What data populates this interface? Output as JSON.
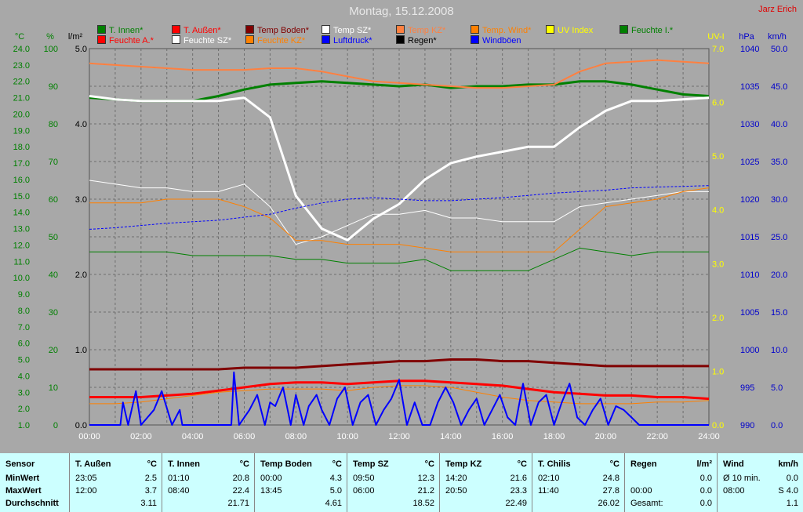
{
  "title": "Montag, 15.12.2008",
  "author": "Jarz Erich",
  "axes": {
    "left1_unit": "°C",
    "left2_unit": "%",
    "left3_unit": "l/m²",
    "right1_unit": "UV-I",
    "right2_unit": "hPa",
    "right3_unit": "km/h",
    "temp_ticks": [
      "24.0",
      "23.0",
      "22.0",
      "21.0",
      "20.0",
      "19.0",
      "18.0",
      "17.0",
      "16.0",
      "15.0",
      "14.0",
      "13.0",
      "12.0",
      "11.0",
      "10.0",
      "9.0",
      "8.0",
      "7.0",
      "6.0",
      "5.0",
      "4.0",
      "3.0",
      "2.0",
      "1.0"
    ],
    "hum_ticks": [
      "100",
      "90",
      "80",
      "70",
      "60",
      "50",
      "40",
      "30",
      "20",
      "10",
      "0"
    ],
    "rain_ticks": [
      "5.0",
      "4.0",
      "3.0",
      "2.0",
      "1.0",
      "0.0"
    ],
    "uv_ticks": [
      "7.0",
      "6.0",
      "5.0",
      "4.0",
      "3.0",
      "2.0",
      "1.0",
      "0.0"
    ],
    "hpa_ticks": [
      "1040",
      "1035",
      "1030",
      "1025",
      "1020",
      "1015",
      "1010",
      "1005",
      "1000",
      "995",
      "990"
    ],
    "kmh_ticks": [
      "50.0",
      "45.0",
      "40.0",
      "35.0",
      "30.0",
      "25.0",
      "20.0",
      "15.0",
      "10.0",
      "5.0",
      "0.0"
    ],
    "time_ticks": [
      "00:00",
      "02:00",
      "04:00",
      "06:00",
      "08:00",
      "10:00",
      "12:00",
      "14:00",
      "16:00",
      "18:00",
      "20:00",
      "22:00",
      "24:00"
    ]
  },
  "legend": [
    {
      "label": "T. Innen*",
      "color": "#008000"
    },
    {
      "label": "T. Außen*",
      "color": "#ff0000"
    },
    {
      "label": "Temp Boden*",
      "color": "#800000"
    },
    {
      "label": "Temp SZ*",
      "color": "#ffffff"
    },
    {
      "label": "Temp KZ*",
      "color": "#ff8040"
    },
    {
      "label": "Temp. Wind*",
      "color": "#ff8000"
    },
    {
      "label": "UV Index",
      "color": "#ffff00"
    },
    {
      "label": "Feuchte I.*",
      "color": "#008000"
    },
    {
      "label": "Feuchte A.*",
      "color": "#ff0000"
    },
    {
      "label": "Feuchte SZ*",
      "color": "#ffffff"
    },
    {
      "label": "Feuchte KZ*",
      "color": "#ff8000"
    },
    {
      "label": "Luftdruck*",
      "color": "#0000ff"
    },
    {
      "label": "Regen*",
      "color": "#000000"
    },
    {
      "label": "Windböen",
      "color": "#0000ff"
    }
  ],
  "chart_data": {
    "type": "line",
    "title": "Montag, 15.12.2008",
    "x_unit": "hours",
    "xlim": [
      0,
      24
    ],
    "temp_ylim": [
      1,
      24
    ],
    "hum_ylim": [
      0,
      100
    ],
    "hpa_ylim": [
      990,
      1040
    ],
    "kmh_ylim": [
      0,
      50
    ],
    "series": [
      {
        "name": "T. Innen*",
        "axis": "temp",
        "color": "#008000",
        "width": 3,
        "x": [
          0,
          1,
          2,
          3,
          4,
          5,
          6,
          7,
          8,
          9,
          10,
          11,
          12,
          13,
          14,
          15,
          16,
          17,
          18,
          19,
          20,
          21,
          22,
          23,
          24
        ],
        "y": [
          21.0,
          20.9,
          20.8,
          20.8,
          20.8,
          21.1,
          21.5,
          21.8,
          21.9,
          22.0,
          21.9,
          21.8,
          21.7,
          21.8,
          21.6,
          21.7,
          21.7,
          21.8,
          21.8,
          22.0,
          22.0,
          21.8,
          21.5,
          21.2,
          21.1
        ]
      },
      {
        "name": "T. Außen*",
        "axis": "temp",
        "color": "#ff0000",
        "width": 3,
        "x": [
          0,
          1,
          2,
          3,
          4,
          5,
          6,
          7,
          8,
          9,
          10,
          11,
          12,
          13,
          14,
          15,
          16,
          17,
          18,
          19,
          20,
          21,
          22,
          23,
          24
        ],
        "y": [
          2.7,
          2.7,
          2.7,
          2.8,
          2.9,
          3.1,
          3.3,
          3.5,
          3.6,
          3.6,
          3.5,
          3.6,
          3.7,
          3.7,
          3.6,
          3.5,
          3.4,
          3.2,
          3.0,
          2.9,
          2.8,
          2.8,
          2.7,
          2.7,
          2.6
        ]
      },
      {
        "name": "Temp Boden*",
        "axis": "temp",
        "color": "#800000",
        "width": 3,
        "x": [
          0,
          1,
          2,
          3,
          4,
          5,
          6,
          7,
          8,
          9,
          10,
          11,
          12,
          13,
          14,
          15,
          16,
          17,
          18,
          19,
          20,
          21,
          22,
          23,
          24
        ],
        "y": [
          4.4,
          4.4,
          4.4,
          4.4,
          4.4,
          4.4,
          4.5,
          4.5,
          4.5,
          4.6,
          4.7,
          4.8,
          4.9,
          4.9,
          5.0,
          5.0,
          4.9,
          4.9,
          4.8,
          4.7,
          4.6,
          4.6,
          4.6,
          4.6,
          4.6
        ]
      },
      {
        "name": "Temp SZ*",
        "axis": "temp",
        "color": "#ffffff",
        "width": 3,
        "x": [
          0,
          1,
          2,
          3,
          4,
          5,
          6,
          7,
          8,
          9,
          10,
          11,
          12,
          13,
          14,
          15,
          16,
          17,
          18,
          19,
          20,
          21,
          22,
          23,
          24
        ],
        "y": [
          21.1,
          20.9,
          20.8,
          20.8,
          20.8,
          20.8,
          21.0,
          19.8,
          15.0,
          13.0,
          12.3,
          13.6,
          14.5,
          16.0,
          17.0,
          17.4,
          17.7,
          18.0,
          18.0,
          19.2,
          20.2,
          20.8,
          20.8,
          20.9,
          21.0
        ]
      },
      {
        "name": "Temp KZ*",
        "axis": "temp",
        "color": "#ff8040",
        "width": 2,
        "x": [
          0,
          1,
          2,
          3,
          4,
          5,
          6,
          7,
          8,
          9,
          10,
          11,
          12,
          13,
          14,
          15,
          16,
          17,
          18,
          19,
          20,
          21,
          22,
          23,
          24
        ],
        "y": [
          23.1,
          23.0,
          22.9,
          22.8,
          22.7,
          22.7,
          22.7,
          22.8,
          22.8,
          22.6,
          22.3,
          22.0,
          21.9,
          21.8,
          21.7,
          21.6,
          21.6,
          21.7,
          21.8,
          22.6,
          23.1,
          23.2,
          23.3,
          23.2,
          23.1
        ]
      },
      {
        "name": "Temp. Wind*",
        "axis": "temp",
        "color": "#ff8000",
        "width": 1,
        "x": [
          0,
          1,
          2,
          3,
          4,
          5,
          6,
          7,
          8,
          9,
          10,
          11,
          12,
          13,
          14,
          15,
          16,
          17,
          18,
          19,
          20,
          21,
          22,
          23,
          24
        ],
        "y": [
          2.3,
          2.3,
          2.4,
          2.6,
          2.8,
          3.0,
          3.1,
          3.2,
          3.2,
          3.2,
          3.1,
          3.3,
          3.4,
          3.4,
          3.3,
          3.0,
          2.7,
          2.5,
          2.4,
          2.3,
          2.3,
          2.3,
          2.4,
          2.4,
          2.5
        ]
      },
      {
        "name": "Feuchte I.*",
        "axis": "hum",
        "color": "#008000",
        "width": 1,
        "x": [
          0,
          1,
          2,
          3,
          4,
          5,
          6,
          7,
          8,
          9,
          10,
          11,
          12,
          13,
          14,
          15,
          16,
          17,
          18,
          19,
          20,
          21,
          22,
          23,
          24
        ],
        "y": [
          46,
          46,
          46,
          46,
          45,
          45,
          45,
          45,
          44,
          44,
          43,
          43,
          43,
          44,
          41,
          41,
          41,
          41,
          44,
          47,
          46,
          45,
          46,
          46,
          46
        ]
      },
      {
        "name": "Feuchte SZ*",
        "axis": "hum",
        "color": "#ffffff",
        "width": 1,
        "x": [
          0,
          1,
          2,
          3,
          4,
          5,
          6,
          7,
          8,
          9,
          10,
          11,
          12,
          13,
          14,
          15,
          16,
          17,
          18,
          19,
          20,
          21,
          22,
          23,
          24
        ],
        "y": [
          65,
          64,
          63,
          63,
          62,
          62,
          64,
          58,
          48,
          50,
          53,
          56,
          56,
          57,
          55,
          55,
          54,
          54,
          54,
          58,
          59,
          60,
          61,
          62,
          62
        ]
      },
      {
        "name": "Feuchte KZ*",
        "axis": "hum",
        "color": "#ff8000",
        "width": 1,
        "x": [
          0,
          1,
          2,
          3,
          4,
          5,
          6,
          7,
          8,
          9,
          10,
          11,
          12,
          13,
          14,
          15,
          16,
          17,
          18,
          19,
          20,
          21,
          22,
          23,
          24
        ],
        "y": [
          59,
          59,
          59,
          60,
          60,
          60,
          58,
          55,
          49,
          49,
          48,
          48,
          48,
          47,
          46,
          46,
          46,
          46,
          46,
          52,
          58,
          59,
          60,
          62,
          63
        ]
      },
      {
        "name": "Luftdruck*",
        "axis": "hpa",
        "color": "#0000ff",
        "width": 1,
        "dash": "3,2",
        "x": [
          0,
          1,
          2,
          3,
          4,
          5,
          6,
          7,
          8,
          9,
          10,
          11,
          12,
          13,
          14,
          15,
          16,
          17,
          18,
          19,
          20,
          21,
          22,
          23,
          24
        ],
        "y": [
          1016.0,
          1016.2,
          1016.5,
          1016.8,
          1017.0,
          1017.2,
          1017.6,
          1018.0,
          1018.8,
          1019.5,
          1020.0,
          1020.2,
          1020.0,
          1019.8,
          1019.8,
          1020.0,
          1020.2,
          1020.5,
          1020.8,
          1021.0,
          1021.2,
          1021.5,
          1021.6,
          1021.7,
          1021.8
        ]
      },
      {
        "name": "Windböen",
        "axis": "kmh",
        "color": "#0000ff",
        "width": 2,
        "x": [
          0,
          1.2,
          1.3,
          1.5,
          1.8,
          2.0,
          2.5,
          2.8,
          3.2,
          3.5,
          3.6,
          4.0,
          4.5,
          5.2,
          5.5,
          5.6,
          5.8,
          6.2,
          6.5,
          6.8,
          7.0,
          7.2,
          7.5,
          7.8,
          8.0,
          8.3,
          8.5,
          8.8,
          9.0,
          9.3,
          9.6,
          9.9,
          10.2,
          10.5,
          10.8,
          11.1,
          11.4,
          11.7,
          12.0,
          12.3,
          12.6,
          12.9,
          13.2,
          13.5,
          13.8,
          14.1,
          14.4,
          14.7,
          15.0,
          15.3,
          15.6,
          15.9,
          16.2,
          16.5,
          16.8,
          17.1,
          17.4,
          17.7,
          18.0,
          18.3,
          18.6,
          18.9,
          19.2,
          19.5,
          19.8,
          20.1,
          20.4,
          20.7,
          21.0,
          21.3,
          21.6,
          24
        ],
        "y": [
          0,
          0,
          3,
          0,
          4.5,
          0,
          2,
          4.5,
          0,
          2,
          0,
          0,
          0,
          0,
          0,
          7,
          0,
          2,
          4,
          0,
          3,
          2.5,
          5,
          0,
          4,
          0,
          2.5,
          4,
          2,
          0,
          3.5,
          5,
          0,
          3,
          4,
          0,
          2,
          3.5,
          6,
          0,
          3,
          0,
          0,
          3,
          5,
          3,
          0,
          2,
          3.5,
          0,
          2,
          4,
          1,
          0,
          5.5,
          0,
          3,
          4,
          0,
          3,
          5.5,
          1,
          0,
          2,
          3.5,
          0,
          2.5,
          2,
          1,
          0,
          0,
          0
        ]
      }
    ]
  },
  "stats": {
    "headers": [
      {
        "name": "Sensor",
        "unit": ""
      },
      {
        "name": "T. Außen",
        "unit": "°C"
      },
      {
        "name": "T. Innen",
        "unit": "°C"
      },
      {
        "name": "Temp Boden",
        "unit": "°C"
      },
      {
        "name": "Temp SZ",
        "unit": "°C"
      },
      {
        "name": "Temp KZ",
        "unit": "°C"
      },
      {
        "name": "T. Chilis",
        "unit": "°C"
      },
      {
        "name": "Regen",
        "unit": "l/m²"
      },
      {
        "name": "Wind",
        "unit": "km/h"
      }
    ],
    "row_labels": [
      "MinWert",
      "MaxWert",
      "Durchschnitt"
    ],
    "rows": [
      [
        [
          "23:05",
          "2.5"
        ],
        [
          "12:00",
          "3.7"
        ],
        [
          "",
          "3.11"
        ]
      ],
      [
        [
          "01:10",
          "20.8"
        ],
        [
          "08:40",
          "22.4"
        ],
        [
          "",
          "21.71"
        ]
      ],
      [
        [
          "00:00",
          "4.3"
        ],
        [
          "13:45",
          "5.0"
        ],
        [
          "",
          "4.61"
        ]
      ],
      [
        [
          "09:50",
          "12.3"
        ],
        [
          "06:00",
          "21.2"
        ],
        [
          "",
          "18.52"
        ]
      ],
      [
        [
          "14:20",
          "21.6"
        ],
        [
          "20:50",
          "23.3"
        ],
        [
          "",
          "22.49"
        ]
      ],
      [
        [
          "02:10",
          "24.8"
        ],
        [
          "11:40",
          "27.8"
        ],
        [
          "",
          "26.02"
        ]
      ],
      [
        [
          "",
          "0.0"
        ],
        [
          "00:00",
          "0.0"
        ],
        [
          "Gesamt:",
          "0.0"
        ]
      ],
      [
        [
          "Ø 10 min.",
          "0.0"
        ],
        [
          "08:00",
          "S 4.0"
        ],
        [
          "",
          "1.1"
        ]
      ]
    ]
  }
}
